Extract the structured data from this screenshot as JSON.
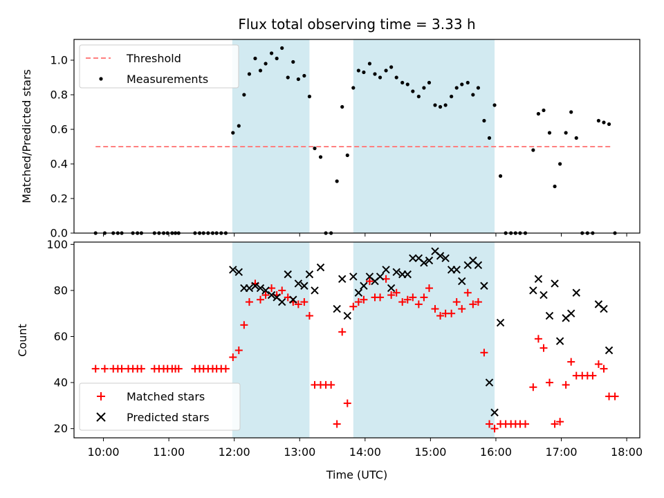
{
  "title": "Flux total observing time = 3.33 h",
  "chart_data": [
    {
      "type": "scatter",
      "panel": "top",
      "ylabel": "Matched/Predicted stars",
      "xlim": [
        9.55,
        18.2
      ],
      "ylim": [
        0,
        1.12
      ],
      "yticks": [
        0.0,
        0.2,
        0.4,
        0.6,
        0.8,
        1.0
      ],
      "ytick_labels": [
        "0.0",
        "0.2",
        "0.4",
        "0.6",
        "0.8",
        "1.0"
      ],
      "shaded_intervals": [
        [
          11.97,
          13.15
        ],
        [
          13.82,
          15.98
        ]
      ],
      "shade_color": "#add8e6",
      "legend_position": "upper left",
      "threshold": {
        "name": "Threshold",
        "value": 0.5,
        "x_range": [
          9.88,
          17.78
        ],
        "color": "#ff7f7f"
      },
      "measurements": {
        "name": "Measurements",
        "color": "#000000",
        "points": [
          [
            9.88,
            0
          ],
          [
            10.02,
            0
          ],
          [
            10.15,
            0
          ],
          [
            10.22,
            0
          ],
          [
            10.28,
            0
          ],
          [
            10.45,
            0
          ],
          [
            10.52,
            0
          ],
          [
            10.58,
            0
          ],
          [
            10.78,
            0
          ],
          [
            10.85,
            0
          ],
          [
            10.92,
            0
          ],
          [
            10.98,
            0
          ],
          [
            11.05,
            0
          ],
          [
            11.1,
            0
          ],
          [
            11.15,
            0
          ],
          [
            11.4,
            0
          ],
          [
            11.47,
            0
          ],
          [
            11.53,
            0
          ],
          [
            11.6,
            0
          ],
          [
            11.67,
            0
          ],
          [
            11.73,
            0
          ],
          [
            11.8,
            0
          ],
          [
            11.87,
            0
          ],
          [
            11.98,
            0.58
          ],
          [
            12.07,
            0.62
          ],
          [
            12.15,
            0.8
          ],
          [
            12.23,
            0.92
          ],
          [
            12.32,
            1.01
          ],
          [
            12.4,
            0.94
          ],
          [
            12.48,
            0.98
          ],
          [
            12.57,
            1.04
          ],
          [
            12.65,
            1.01
          ],
          [
            12.73,
            1.07
          ],
          [
            12.82,
            0.9
          ],
          [
            12.9,
            0.99
          ],
          [
            12.98,
            0.89
          ],
          [
            13.07,
            0.91
          ],
          [
            13.15,
            0.79
          ],
          [
            13.23,
            0.49
          ],
          [
            13.32,
            0.44
          ],
          [
            13.4,
            0
          ],
          [
            13.48,
            0
          ],
          [
            13.57,
            0.3
          ],
          [
            13.65,
            0.73
          ],
          [
            13.73,
            0.45
          ],
          [
            13.82,
            0.84
          ],
          [
            13.9,
            0.94
          ],
          [
            13.98,
            0.93
          ],
          [
            14.07,
            0.98
          ],
          [
            14.15,
            0.92
          ],
          [
            14.23,
            0.9
          ],
          [
            14.32,
            0.94
          ],
          [
            14.4,
            0.96
          ],
          [
            14.48,
            0.9
          ],
          [
            14.57,
            0.87
          ],
          [
            14.65,
            0.86
          ],
          [
            14.73,
            0.82
          ],
          [
            14.82,
            0.79
          ],
          [
            14.9,
            0.84
          ],
          [
            14.98,
            0.87
          ],
          [
            15.07,
            0.74
          ],
          [
            15.15,
            0.73
          ],
          [
            15.23,
            0.74
          ],
          [
            15.32,
            0.79
          ],
          [
            15.4,
            0.84
          ],
          [
            15.48,
            0.86
          ],
          [
            15.57,
            0.87
          ],
          [
            15.65,
            0.8
          ],
          [
            15.73,
            0.84
          ],
          [
            15.82,
            0.65
          ],
          [
            15.9,
            0.55
          ],
          [
            15.98,
            0.74
          ],
          [
            16.07,
            0.33
          ],
          [
            16.15,
            0
          ],
          [
            16.23,
            0
          ],
          [
            16.3,
            0
          ],
          [
            16.37,
            0
          ],
          [
            16.45,
            0
          ],
          [
            16.57,
            0.48
          ],
          [
            16.65,
            0.69
          ],
          [
            16.73,
            0.71
          ],
          [
            16.82,
            0.58
          ],
          [
            16.9,
            0.27
          ],
          [
            16.98,
            0.4
          ],
          [
            17.07,
            0.58
          ],
          [
            17.15,
            0.7
          ],
          [
            17.23,
            0.55
          ],
          [
            17.32,
            0
          ],
          [
            17.4,
            0
          ],
          [
            17.48,
            0
          ],
          [
            17.57,
            0.65
          ],
          [
            17.65,
            0.64
          ],
          [
            17.73,
            0.63
          ],
          [
            17.82,
            0
          ]
        ]
      }
    },
    {
      "type": "scatter",
      "panel": "bottom",
      "xlabel": "Time (UTC)",
      "ylabel": "Count",
      "xlim": [
        9.55,
        18.2
      ],
      "ylim": [
        16,
        101
      ],
      "xticks": [
        10,
        11,
        12,
        13,
        14,
        15,
        16,
        17,
        18
      ],
      "xtick_labels": [
        "10:00",
        "11:00",
        "12:00",
        "13:00",
        "14:00",
        "15:00",
        "16:00",
        "17:00",
        "18:00"
      ],
      "yticks": [
        20,
        40,
        60,
        80,
        100
      ],
      "ytick_labels": [
        "20",
        "40",
        "60",
        "80",
        "100"
      ],
      "shaded_intervals": [
        [
          11.97,
          13.15
        ],
        [
          13.82,
          15.98
        ]
      ],
      "legend_position": "lower left",
      "series": [
        {
          "name": "Matched stars",
          "marker": "+",
          "color": "#ff0000",
          "points": [
            [
              9.88,
              46
            ],
            [
              10.02,
              46
            ],
            [
              10.15,
              46
            ],
            [
              10.22,
              46
            ],
            [
              10.28,
              46
            ],
            [
              10.38,
              46
            ],
            [
              10.45,
              46
            ],
            [
              10.52,
              46
            ],
            [
              10.58,
              46
            ],
            [
              10.78,
              46
            ],
            [
              10.85,
              46
            ],
            [
              10.92,
              46
            ],
            [
              10.98,
              46
            ],
            [
              11.05,
              46
            ],
            [
              11.1,
              46
            ],
            [
              11.15,
              46
            ],
            [
              11.4,
              46
            ],
            [
              11.47,
              46
            ],
            [
              11.53,
              46
            ],
            [
              11.6,
              46
            ],
            [
              11.67,
              46
            ],
            [
              11.73,
              46
            ],
            [
              11.8,
              46
            ],
            [
              11.87,
              46
            ],
            [
              11.98,
              51
            ],
            [
              12.07,
              54
            ],
            [
              12.15,
              65
            ],
            [
              12.23,
              75
            ],
            [
              12.32,
              83
            ],
            [
              12.4,
              76
            ],
            [
              12.48,
              78
            ],
            [
              12.57,
              81
            ],
            [
              12.65,
              78
            ],
            [
              12.73,
              80
            ],
            [
              12.82,
              77
            ],
            [
              12.9,
              75
            ],
            [
              12.98,
              74
            ],
            [
              13.07,
              75
            ],
            [
              13.15,
              69
            ],
            [
              13.23,
              39
            ],
            [
              13.32,
              39
            ],
            [
              13.4,
              39
            ],
            [
              13.48,
              39
            ],
            [
              13.57,
              22
            ],
            [
              13.65,
              62
            ],
            [
              13.73,
              31
            ],
            [
              13.82,
              73
            ],
            [
              13.9,
              75
            ],
            [
              13.98,
              76
            ],
            [
              14.07,
              84
            ],
            [
              14.15,
              77
            ],
            [
              14.23,
              77
            ],
            [
              14.32,
              85
            ],
            [
              14.4,
              78
            ],
            [
              14.48,
              79
            ],
            [
              14.57,
              75
            ],
            [
              14.65,
              76
            ],
            [
              14.73,
              77
            ],
            [
              14.82,
              74
            ],
            [
              14.9,
              77
            ],
            [
              14.98,
              81
            ],
            [
              15.07,
              72
            ],
            [
              15.15,
              69
            ],
            [
              15.23,
              70
            ],
            [
              15.32,
              70
            ],
            [
              15.4,
              75
            ],
            [
              15.48,
              72
            ],
            [
              15.57,
              79
            ],
            [
              15.65,
              74
            ],
            [
              15.73,
              75
            ],
            [
              15.82,
              53
            ],
            [
              15.9,
              22
            ],
            [
              15.98,
              20
            ],
            [
              16.07,
              22
            ],
            [
              16.15,
              22
            ],
            [
              16.23,
              22
            ],
            [
              16.3,
              22
            ],
            [
              16.37,
              22
            ],
            [
              16.45,
              22
            ],
            [
              16.57,
              38
            ],
            [
              16.65,
              59
            ],
            [
              16.73,
              55
            ],
            [
              16.82,
              40
            ],
            [
              16.9,
              22
            ],
            [
              16.98,
              23
            ],
            [
              17.07,
              39
            ],
            [
              17.15,
              49
            ],
            [
              17.23,
              43
            ],
            [
              17.32,
              43
            ],
            [
              17.4,
              43
            ],
            [
              17.48,
              43
            ],
            [
              17.57,
              48
            ],
            [
              17.65,
              46
            ],
            [
              17.73,
              34
            ],
            [
              17.82,
              34
            ]
          ]
        },
        {
          "name": "Predicted stars",
          "marker": "x",
          "color": "#000000",
          "points": [
            [
              11.98,
              89
            ],
            [
              12.07,
              88
            ],
            [
              12.15,
              81
            ],
            [
              12.23,
              81
            ],
            [
              12.32,
              82
            ],
            [
              12.4,
              81
            ],
            [
              12.48,
              80
            ],
            [
              12.57,
              78
            ],
            [
              12.65,
              77
            ],
            [
              12.73,
              75
            ],
            [
              12.82,
              87
            ],
            [
              12.9,
              76
            ],
            [
              12.98,
              83
            ],
            [
              13.07,
              82
            ],
            [
              13.15,
              87
            ],
            [
              13.23,
              80
            ],
            [
              13.32,
              90
            ],
            [
              13.57,
              72
            ],
            [
              13.65,
              85
            ],
            [
              13.73,
              69
            ],
            [
              13.82,
              86
            ],
            [
              13.9,
              79
            ],
            [
              13.98,
              82
            ],
            [
              14.07,
              86
            ],
            [
              14.15,
              84
            ],
            [
              14.23,
              86
            ],
            [
              14.32,
              89
            ],
            [
              14.4,
              81
            ],
            [
              14.48,
              88
            ],
            [
              14.57,
              87
            ],
            [
              14.65,
              87
            ],
            [
              14.73,
              94
            ],
            [
              14.82,
              94
            ],
            [
              14.9,
              92
            ],
            [
              14.98,
              93
            ],
            [
              15.07,
              97
            ],
            [
              15.15,
              95
            ],
            [
              15.23,
              94
            ],
            [
              15.32,
              89
            ],
            [
              15.4,
              89
            ],
            [
              15.48,
              84
            ],
            [
              15.57,
              91
            ],
            [
              15.65,
              93
            ],
            [
              15.73,
              91
            ],
            [
              15.82,
              82
            ],
            [
              15.9,
              40
            ],
            [
              15.98,
              27
            ],
            [
              16.07,
              66
            ],
            [
              16.57,
              80
            ],
            [
              16.65,
              85
            ],
            [
              16.73,
              78
            ],
            [
              16.82,
              69
            ],
            [
              16.9,
              83
            ],
            [
              16.98,
              58
            ],
            [
              17.07,
              68
            ],
            [
              17.15,
              70
            ],
            [
              17.23,
              79
            ],
            [
              17.57,
              74
            ],
            [
              17.65,
              72
            ],
            [
              17.73,
              54
            ]
          ]
        }
      ]
    }
  ]
}
